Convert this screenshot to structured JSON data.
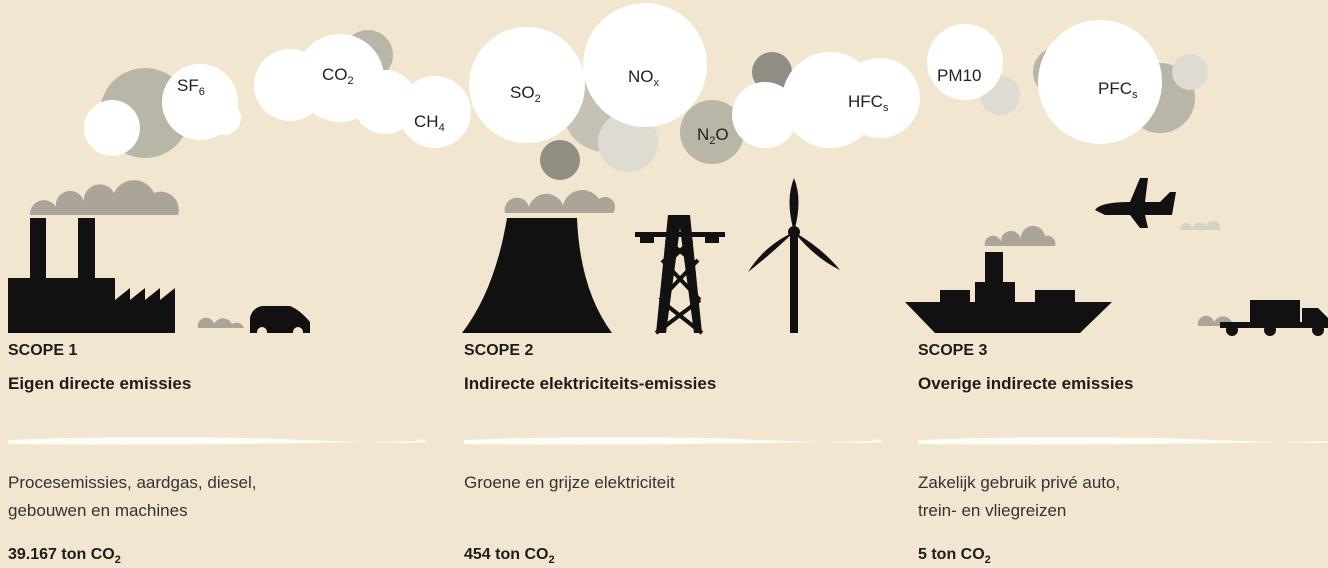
{
  "gases": [
    {
      "name": "SF",
      "sub": "6"
    },
    {
      "name": "CO",
      "sub": "2"
    },
    {
      "name": "CH",
      "sub": "4"
    },
    {
      "name": "SO",
      "sub": "2"
    },
    {
      "name": "NO",
      "sub": "x"
    },
    {
      "name": "N",
      "sub": "2",
      "tail": "O"
    },
    {
      "name": "HFC",
      "sub": "s"
    },
    {
      "name": "PM10"
    },
    {
      "name": "PFC",
      "sub": "s"
    }
  ],
  "scopes": [
    {
      "label": "SCOPE 1",
      "title": "Eigen directe emissies",
      "description": [
        "Procesemissies, aardgas, diesel,",
        "gebouwen en machines"
      ],
      "amount": "39.167 ton CO",
      "amount_sub": "2"
    },
    {
      "label": "SCOPE 2",
      "title": "Indirecte elektriciteits-emissies",
      "description": [
        "Groene en grijze elektriciteit"
      ],
      "amount": "454 ton CO",
      "amount_sub": "2"
    },
    {
      "label": "SCOPE 3",
      "title": "Overige indirecte emissies",
      "description": [
        "Zakelijk gebruik privé auto,",
        "trein- en vliegreizen"
      ],
      "amount": "5 ton CO",
      "amount_sub": "2"
    }
  ]
}
